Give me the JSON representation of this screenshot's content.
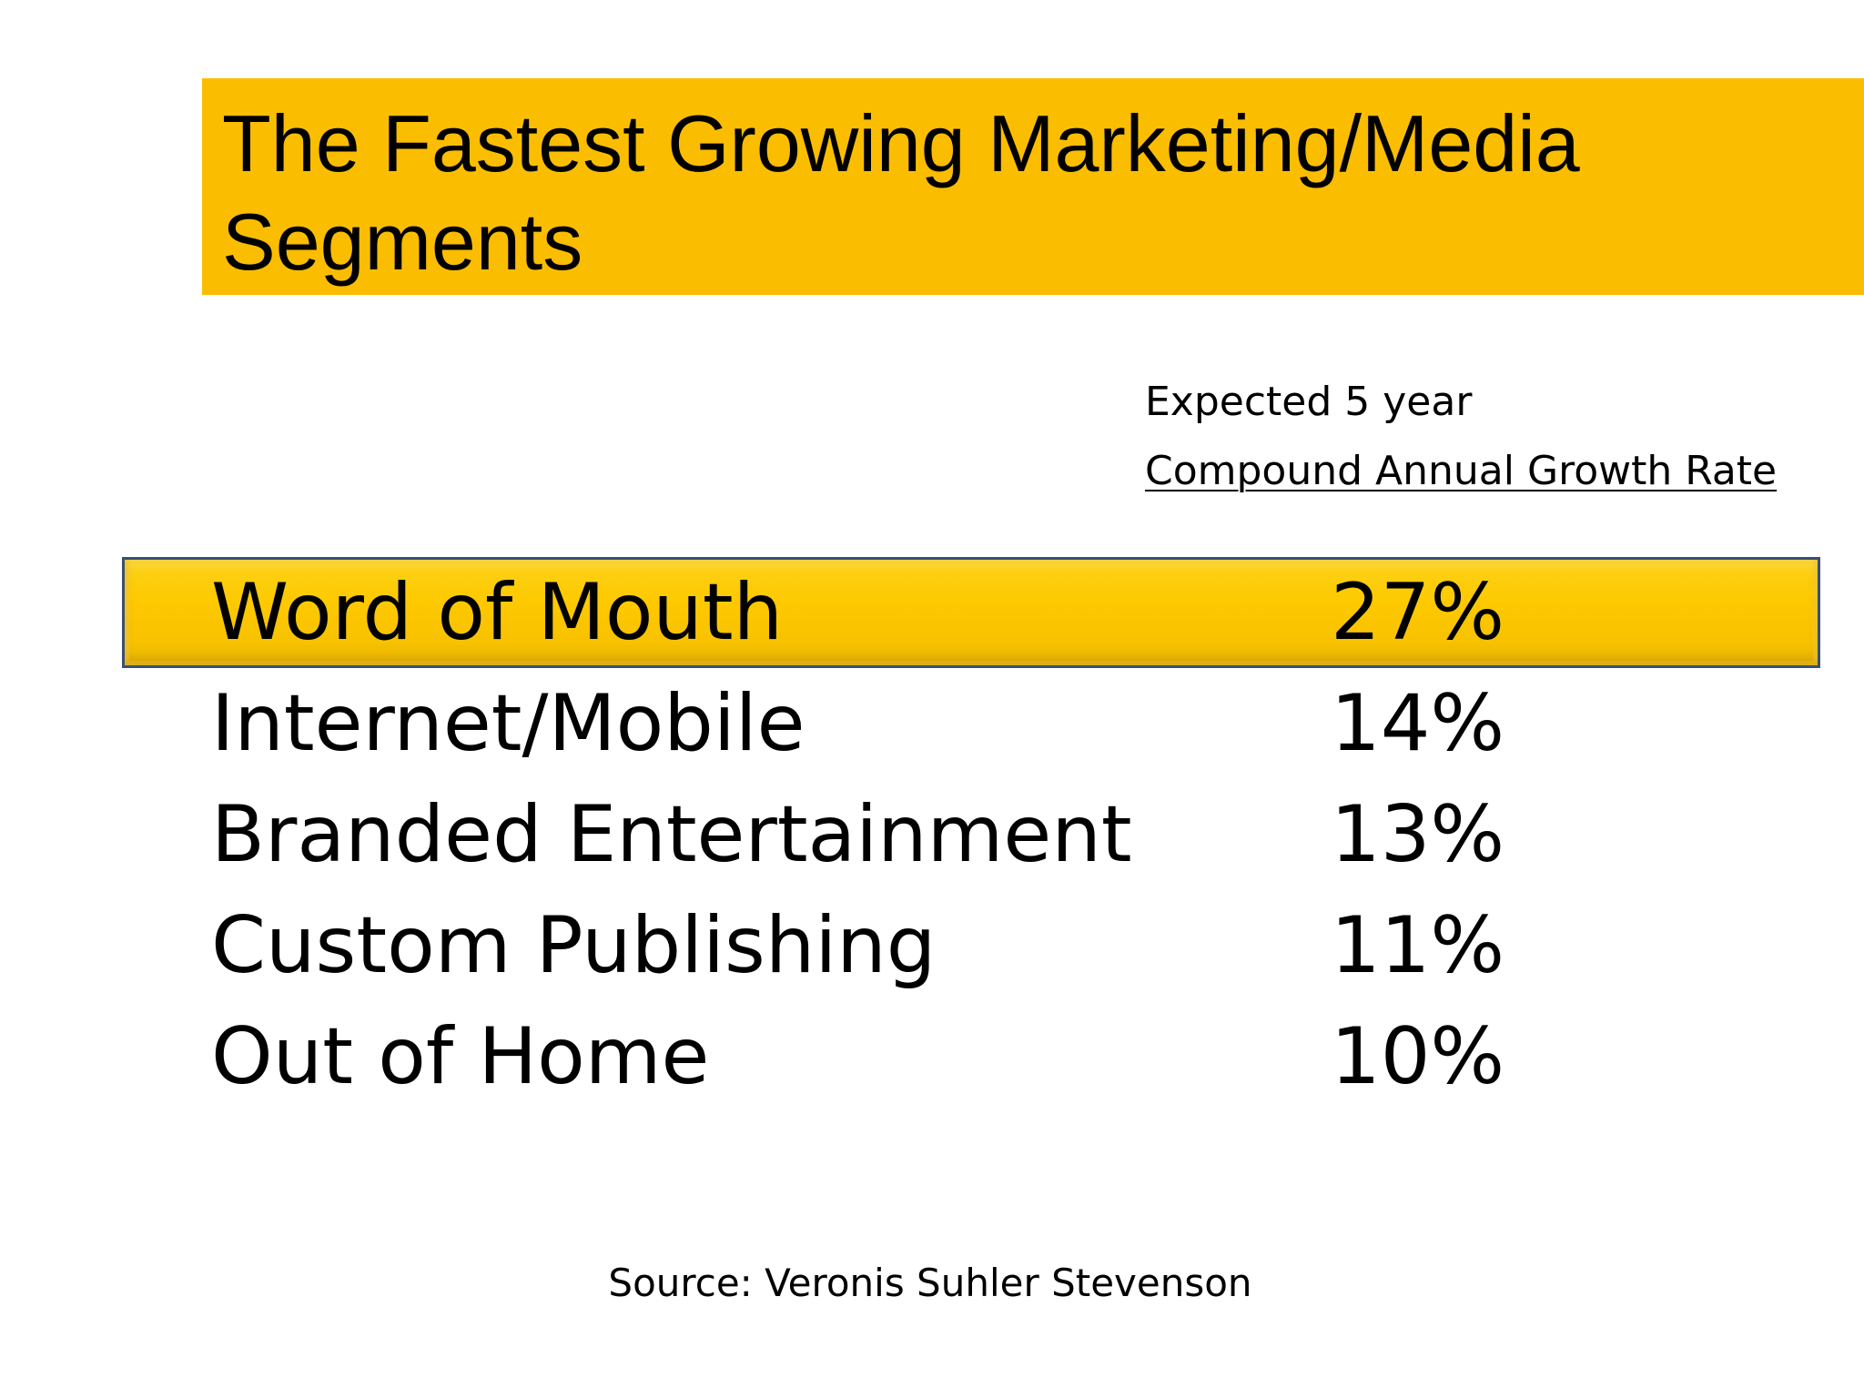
{
  "title": {
    "line1": "The Fastest Growing Marketing/Media",
    "line2": "Segments"
  },
  "column_header": {
    "line1": "Expected 5 year",
    "line2": "Compound Annual Growth Rate"
  },
  "rows": [
    {
      "label": "Word of Mouth",
      "value": "27%"
    },
    {
      "label": "Internet/Mobile",
      "value": "14%"
    },
    {
      "label": "Branded Entertainment",
      "value": "13%"
    },
    {
      "label": "Custom Publishing",
      "value": "11%"
    },
    {
      "label": "Out of Home",
      "value": "10%"
    }
  ],
  "source": "Source: Veronis Suhler Stevenson",
  "colors": {
    "title_bar": "#fbbd00",
    "highlight": "#fec900",
    "highlight_border": "#3a4f72"
  }
}
